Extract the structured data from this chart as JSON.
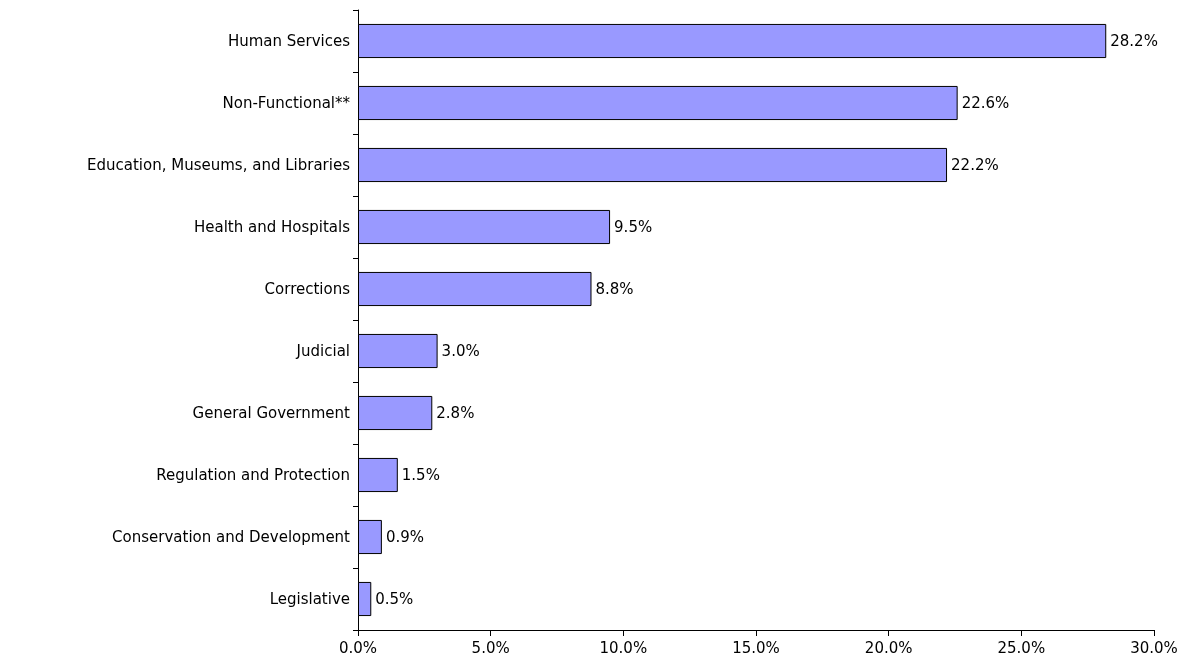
{
  "chart_data": {
    "type": "bar",
    "orientation": "horizontal",
    "categories": [
      "Human Services",
      "Non-Functional**",
      "Education, Museums, and Libraries",
      "Health and Hospitals",
      "Corrections",
      "Judicial",
      "General Government",
      "Regulation and Protection",
      "Conservation and Development",
      "Legislative"
    ],
    "values": [
      28.2,
      22.6,
      22.2,
      9.5,
      8.8,
      3.0,
      2.8,
      1.5,
      0.9,
      0.5
    ],
    "value_labels": [
      "28.2%",
      "22.6%",
      "22.2%",
      "9.5%",
      "8.8%",
      "3.0%",
      "2.8%",
      "1.5%",
      "0.9%",
      "0.5%"
    ],
    "color": "#9999ff",
    "xlim": [
      0,
      30
    ],
    "xticks": [
      {
        "value": 0,
        "label": "0.0%"
      },
      {
        "value": 5,
        "label": "5.0%"
      },
      {
        "value": 10,
        "label": "10.0%"
      },
      {
        "value": 15,
        "label": "15.0%"
      },
      {
        "value": 20,
        "label": "20.0%"
      },
      {
        "value": 25,
        "label": "25.0%"
      },
      {
        "value": 30,
        "label": "30.0%"
      }
    ],
    "grid": false
  }
}
